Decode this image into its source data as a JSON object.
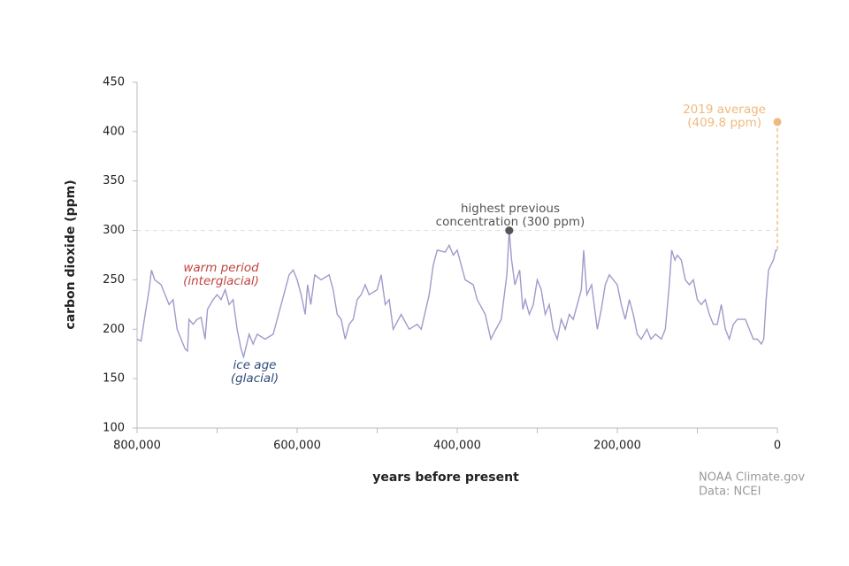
{
  "chart_data": {
    "type": "line",
    "ylabel": "carbon dioxide (ppm)",
    "xlabel": "years before present",
    "color": "#9f9bcb",
    "xlim": [
      800000,
      0
    ],
    "xticks": [
      {
        "value": 800000,
        "label": "800,000"
      },
      {
        "value": 600000,
        "label": "600,000"
      },
      {
        "value": 400000,
        "label": "400,000"
      },
      {
        "value": 200000,
        "label": "200,000"
      },
      0
    ],
    "xminorticks": [
      700000,
      500000,
      300000,
      100000
    ],
    "ylim": [
      100,
      450
    ],
    "yticks": [
      100,
      150,
      200,
      250,
      300,
      350,
      400,
      450
    ],
    "x": [
      800000,
      795000,
      790000,
      785000,
      782000,
      778000,
      770000,
      765000,
      760000,
      755000,
      750000,
      745000,
      740000,
      737000,
      735000,
      730000,
      725000,
      720000,
      715000,
      712000,
      705000,
      700000,
      695000,
      690000,
      685000,
      680000,
      675000,
      670000,
      667000,
      663000,
      660000,
      655000,
      650000,
      640000,
      630000,
      620000,
      615000,
      610000,
      605000,
      600000,
      595000,
      590000,
      587000,
      583000,
      578000,
      570000,
      560000,
      555000,
      550000,
      545000,
      540000,
      535000,
      530000,
      525000,
      520000,
      515000,
      510000,
      500000,
      495000,
      490000,
      485000,
      480000,
      470000,
      460000,
      450000,
      445000,
      435000,
      430000,
      425000,
      415000,
      410000,
      405000,
      400000,
      395000,
      390000,
      380000,
      375000,
      365000,
      358000,
      355000,
      345000,
      338000,
      335000,
      332000,
      328000,
      322000,
      318000,
      315000,
      310000,
      305000,
      300000,
      295000,
      290000,
      285000,
      280000,
      275000,
      270000,
      265000,
      260000,
      255000,
      245000,
      242000,
      238000,
      232000,
      225000,
      220000,
      215000,
      210000,
      205000,
      200000,
      195000,
      190000,
      185000,
      180000,
      175000,
      170000,
      163000,
      158000,
      152000,
      145000,
      140000,
      135000,
      132000,
      128000,
      125000,
      120000,
      115000,
      110000,
      105000,
      100000,
      95000,
      90000,
      85000,
      80000,
      75000,
      70000,
      65000,
      60000,
      55000,
      50000,
      40000,
      35000,
      30000,
      25000,
      20000,
      17000,
      14000,
      11000,
      8000,
      5000,
      2000,
      0
    ],
    "values": [
      190,
      188,
      215,
      240,
      260,
      250,
      245,
      235,
      225,
      230,
      200,
      190,
      180,
      178,
      210,
      205,
      210,
      212,
      190,
      220,
      230,
      235,
      230,
      240,
      225,
      230,
      200,
      180,
      172,
      185,
      195,
      185,
      195,
      190,
      195,
      225,
      240,
      255,
      260,
      250,
      235,
      215,
      245,
      225,
      255,
      250,
      255,
      240,
      215,
      210,
      190,
      205,
      210,
      230,
      235,
      245,
      235,
      240,
      255,
      225,
      230,
      200,
      215,
      200,
      205,
      200,
      235,
      265,
      280,
      278,
      285,
      275,
      280,
      265,
      250,
      245,
      230,
      215,
      190,
      195,
      210,
      255,
      300,
      270,
      245,
      260,
      220,
      230,
      215,
      225,
      250,
      240,
      215,
      225,
      200,
      190,
      210,
      200,
      215,
      210,
      240,
      280,
      235,
      245,
      200,
      220,
      245,
      255,
      250,
      245,
      225,
      210,
      230,
      215,
      195,
      190,
      200,
      190,
      195,
      190,
      200,
      245,
      280,
      270,
      275,
      270,
      250,
      245,
      250,
      230,
      225,
      230,
      215,
      205,
      205,
      225,
      200,
      190,
      205,
      210,
      210,
      200,
      190,
      190,
      185,
      190,
      230,
      260,
      265,
      270,
      280,
      280
    ],
    "annotations": [
      {
        "lines": [
          "warm period",
          "(interglacial)"
        ]
      },
      {
        "lines": [
          "ice age",
          "(glacial)"
        ]
      }
    ],
    "highlight": {
      "x": 335000,
      "y": 300,
      "lines": [
        "highest previous",
        "concentration (300 ppm)"
      ],
      "color": "#555555"
    },
    "current": {
      "x": 0,
      "y": 409.8,
      "lines": [
        "2019 average",
        "(409.8 ppm)"
      ],
      "color": "#f0b97d"
    },
    "credit": [
      "NOAA Climate.gov",
      "Data: NCEI"
    ]
  }
}
